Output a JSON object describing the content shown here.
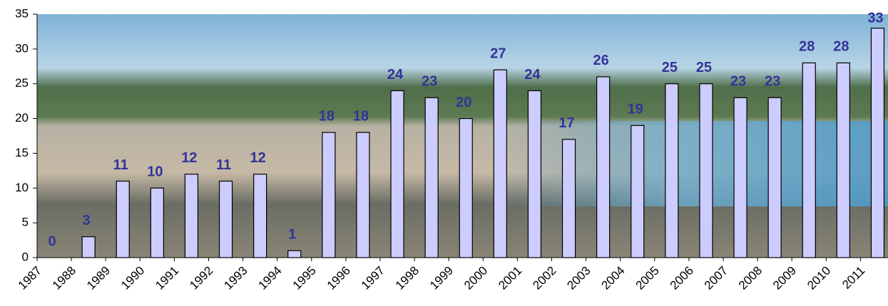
{
  "chart_data": {
    "type": "bar",
    "categories": [
      "1987",
      "1988",
      "1989",
      "1990",
      "1991",
      "1992",
      "1993",
      "1994",
      "1995",
      "1996",
      "1997",
      "1998",
      "1999",
      "2000",
      "2001",
      "2002",
      "2003",
      "2004",
      "2005",
      "2006",
      "2007",
      "2008",
      "2009",
      "2010",
      "2011"
    ],
    "values": [
      0,
      3,
      11,
      10,
      12,
      11,
      12,
      1,
      18,
      18,
      24,
      23,
      20,
      27,
      24,
      17,
      26,
      19,
      25,
      25,
      23,
      23,
      28,
      28,
      33
    ],
    "color": "#ccccff",
    "ylim": [
      0,
      35
    ],
    "yticks": [
      0,
      5,
      10,
      15,
      20,
      25,
      30,
      35
    ],
    "grid": false
  }
}
